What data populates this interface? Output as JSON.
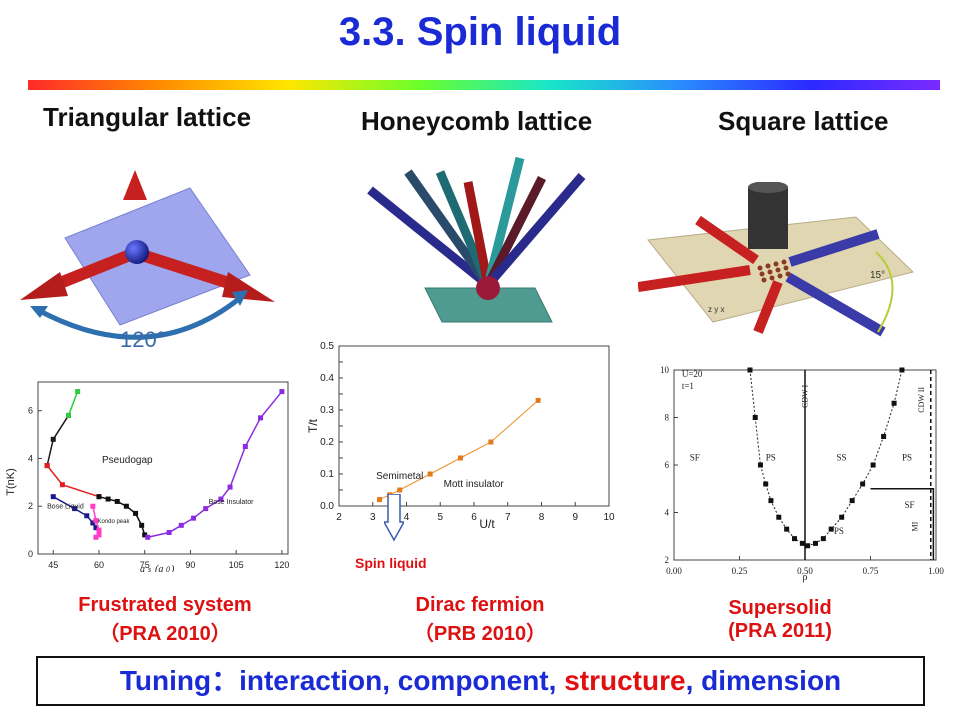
{
  "slide": {
    "title": "3.3. Spin liquid",
    "lattices": [
      "Triangular lattice",
      "Honeycomb lattice",
      "Square lattice"
    ],
    "angle_label": "120°",
    "square_angle_label": "15°",
    "captions": {
      "frustrated": {
        "line1": "Frustrated system",
        "line2": "（PRA 2010）"
      },
      "dirac": {
        "line1": "Dirac fermion",
        "line2": "（PRB 2010）"
      },
      "supersolid": {
        "line1": "Supersolid",
        "line2": "(PRA 2011)"
      }
    },
    "spin_liquid_label": "Spin liquid",
    "tuning": {
      "prefix": "Tuning：interaction, component, ",
      "highlight": "structure",
      "suffix": ", dimension"
    },
    "colors": {
      "title": "#1a2bd6",
      "caption": "#dd1111",
      "arrow_red": "#c62020",
      "arrow_blue": "#3636a8"
    }
  },
  "chart_data": [
    {
      "type": "line",
      "ylabel": "T(nK)",
      "xticks": [
        45,
        60,
        75,
        90,
        105,
        120
      ],
      "yticks": [
        0,
        2,
        4,
        6
      ],
      "xlim": [
        40,
        122
      ],
      "ylim": [
        0,
        7.2
      ],
      "annotations": [
        "Pseudogap",
        "Bose Liquid",
        "Bose Insulator",
        "Kondo peak"
      ],
      "series": [
        {
          "x": [
            43,
            45,
            50
          ],
          "values": [
            3.7,
            4.8,
            5.8
          ],
          "color": "#1a1a1a"
        },
        {
          "x": [
            50,
            53
          ],
          "values": [
            5.8,
            6.8
          ],
          "color": "#2ecc40"
        },
        {
          "x": [
            43,
            48,
            60
          ],
          "values": [
            3.7,
            2.9,
            2.4
          ],
          "color": "#e02020"
        },
        {
          "x": [
            60,
            63,
            66,
            69,
            72,
            74,
            75
          ],
          "values": [
            2.4,
            2.3,
            2.2,
            2.0,
            1.7,
            1.2,
            0.8
          ],
          "color": "#111111"
        },
        {
          "x": [
            45,
            52,
            56,
            58,
            59
          ],
          "values": [
            2.4,
            1.9,
            1.6,
            1.3,
            1.1
          ],
          "color": "#1a1a8a"
        },
        {
          "x": [
            58,
            59,
            60,
            60,
            59
          ],
          "values": [
            2.0,
            1.4,
            1.0,
            0.8,
            0.7
          ],
          "color": "#ff3cc8"
        },
        {
          "x": [
            76,
            83,
            87,
            91,
            95,
            100,
            103,
            108,
            113,
            120
          ],
          "values": [
            0.7,
            0.9,
            1.2,
            1.5,
            1.9,
            2.3,
            2.8,
            4.5,
            5.7,
            6.8
          ],
          "color": "#8a2be2"
        }
      ]
    },
    {
      "type": "line",
      "xlabel": "U/t",
      "ylabel": "T/t",
      "xticks": [
        2,
        3,
        4,
        5,
        6,
        7,
        8,
        9,
        10
      ],
      "yticks": [
        0.0,
        0.05,
        0.1,
        0.15,
        0.2,
        0.25,
        0.3,
        0.35,
        0.4,
        0.45,
        0.5
      ],
      "xlim": [
        2,
        10
      ],
      "ylim": [
        0,
        0.5
      ],
      "annotations": [
        "Semimetal",
        "Mott insulator"
      ],
      "series": [
        {
          "x": [
            3.2,
            3.5,
            3.8,
            4.7,
            5.6,
            6.5,
            7.9
          ],
          "values": [
            0.02,
            0.035,
            0.05,
            0.1,
            0.15,
            0.2,
            0.33
          ],
          "color": "#f0902a"
        }
      ]
    },
    {
      "type": "line",
      "xlabel": "ρ",
      "xticks": [
        "0.00",
        "0.25",
        "0.50",
        "0.75",
        "1.00"
      ],
      "yticks": [
        2,
        4,
        6,
        8,
        10
      ],
      "xlim": [
        0,
        1
      ],
      "ylim": [
        2,
        10
      ],
      "annotations": [
        "U=20",
        "t=1",
        "SF",
        "PS",
        "SS",
        "PS",
        "PS",
        "SF",
        "MI",
        "CDW I",
        "CDW II"
      ],
      "series": [
        {
          "x": [
            0.29,
            0.31,
            0.33,
            0.35,
            0.37,
            0.4,
            0.43,
            0.46,
            0.49,
            0.51,
            0.54,
            0.57,
            0.6,
            0.64,
            0.68,
            0.72,
            0.76,
            0.8,
            0.84,
            0.87
          ],
          "values": [
            10,
            8,
            6,
            5.2,
            4.5,
            3.8,
            3.3,
            2.9,
            2.7,
            2.6,
            2.7,
            2.9,
            3.3,
            3.8,
            4.5,
            5.2,
            6,
            7.2,
            8.6,
            10
          ],
          "color": "#222222"
        }
      ]
    }
  ]
}
